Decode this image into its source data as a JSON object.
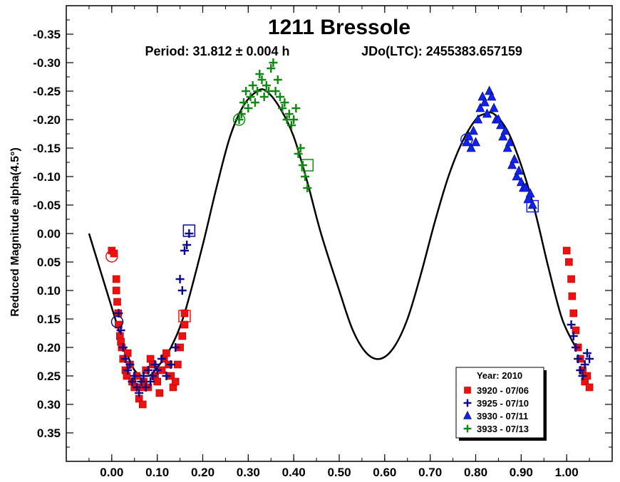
{
  "chart_data": {
    "type": "scatter",
    "title": "1211 Bressole",
    "subtitle_period": "Period: 31.812 ± 0.004 h",
    "subtitle_epoch": "JDo(LTC): 2455383.657159",
    "xlabel": "",
    "ylabel": "Reduced Magnitude alpha(4.5°)",
    "xlim": [
      -0.1,
      1.1
    ],
    "ylim": [
      -0.4,
      0.4
    ],
    "y_inverted": true,
    "x_ticks": [
      0.0,
      0.1,
      0.2,
      0.3,
      0.4,
      0.5,
      0.6,
      0.7,
      0.8,
      0.9,
      1.0
    ],
    "x_tick_labels": [
      "0.00",
      "0.10",
      "0.20",
      "0.30",
      "0.40",
      "0.50",
      "0.60",
      "0.70",
      "0.80",
      "0.90",
      "1.00"
    ],
    "y_ticks": [
      -0.35,
      -0.3,
      -0.25,
      -0.2,
      -0.15,
      -0.1,
      -0.05,
      0.0,
      0.05,
      0.1,
      0.15,
      0.2,
      0.25,
      0.3,
      0.35
    ],
    "y_tick_labels": [
      "-0.35",
      "-0.30",
      "-0.25",
      "-0.20",
      "-0.15",
      "-0.10",
      "-0.05",
      "0.00",
      "0.05",
      "0.10",
      "0.15",
      "0.20",
      "0.25",
      "0.30",
      "0.35"
    ],
    "grid": false,
    "legend": {
      "title": "Year: 2010",
      "placement": "bottom-right",
      "entries": [
        {
          "label": "3920 - 07/06",
          "marker": "square",
          "color": "#ee1111"
        },
        {
          "label": "3925 - 07/10",
          "marker": "plus",
          "color": "#0a0a8a"
        },
        {
          "label": "3930 - 07/11",
          "marker": "triangle",
          "color": "#1122ee"
        },
        {
          "label": "3933 - 07/13",
          "marker": "plus",
          "color": "#118811"
        }
      ]
    },
    "fit_curve": {
      "name": "Fourier fit",
      "color": "#000000",
      "x": [
        -0.05,
        0.0,
        0.02,
        0.05,
        0.08,
        0.1,
        0.13,
        0.16,
        0.2,
        0.23,
        0.26,
        0.29,
        0.32,
        0.34,
        0.37,
        0.4,
        0.43,
        0.46,
        0.5,
        0.53,
        0.56,
        0.59,
        0.62,
        0.65,
        0.68,
        0.71,
        0.74,
        0.77,
        0.8,
        0.82,
        0.84,
        0.87,
        0.9,
        0.93,
        0.96,
        0.99,
        1.02
      ],
      "y": [
        0.0,
        0.13,
        0.18,
        0.24,
        0.25,
        0.235,
        0.2,
        0.14,
        0.02,
        -0.08,
        -0.17,
        -0.225,
        -0.25,
        -0.25,
        -0.22,
        -0.17,
        -0.09,
        0.0,
        0.1,
        0.17,
        0.21,
        0.22,
        0.2,
        0.15,
        0.07,
        -0.02,
        -0.1,
        -0.16,
        -0.2,
        -0.21,
        -0.21,
        -0.18,
        -0.12,
        -0.04,
        0.06,
        0.15,
        0.2
      ]
    },
    "series": [
      {
        "name": "3920 - 07/06",
        "marker": "square",
        "color": "#ee1111",
        "x": [
          0.0,
          0.005,
          0.01,
          0.01,
          0.012,
          0.014,
          0.015,
          0.018,
          0.02,
          0.022,
          0.025,
          0.03,
          0.033,
          0.035,
          0.04,
          0.045,
          0.05,
          0.055,
          0.06,
          0.065,
          0.068,
          0.07,
          0.075,
          0.08,
          0.085,
          0.09,
          0.095,
          0.1,
          0.105,
          0.11,
          0.115,
          0.12,
          0.125,
          0.13,
          0.135,
          0.14,
          0.145,
          0.15,
          0.155,
          0.16,
          0.16,
          1.0,
          1.005,
          1.01,
          1.012,
          1.015,
          1.02,
          1.025,
          1.03,
          1.035,
          1.04,
          1.045,
          1.05
        ],
        "y": [
          0.03,
          0.035,
          0.08,
          0.1,
          0.12,
          0.14,
          0.16,
          0.18,
          0.19,
          0.2,
          0.22,
          0.24,
          0.25,
          0.21,
          0.23,
          0.26,
          0.27,
          0.25,
          0.29,
          0.27,
          0.3,
          0.26,
          0.24,
          0.27,
          0.22,
          0.23,
          0.25,
          0.26,
          0.28,
          0.24,
          0.22,
          0.21,
          0.23,
          0.25,
          0.27,
          0.26,
          0.23,
          0.2,
          0.18,
          0.16,
          0.14,
          0.03,
          0.05,
          0.08,
          0.11,
          0.14,
          0.17,
          0.2,
          0.22,
          0.24,
          0.26,
          0.25,
          0.27
        ]
      },
      {
        "name": "3925 - 07/10",
        "marker": "plus",
        "color": "#0a0a8a",
        "x": [
          0.015,
          0.02,
          0.025,
          0.03,
          0.035,
          0.04,
          0.045,
          0.05,
          0.055,
          0.06,
          0.065,
          0.07,
          0.075,
          0.08,
          0.085,
          0.09,
          0.095,
          0.1,
          0.11,
          0.12,
          0.13,
          0.14,
          0.15,
          0.155,
          0.16,
          0.165,
          0.17,
          1.01,
          1.015,
          1.02,
          1.025,
          1.03,
          1.035,
          1.04,
          1.045,
          1.05
        ],
        "y": [
          0.14,
          0.17,
          0.2,
          0.22,
          0.24,
          0.23,
          0.26,
          0.25,
          0.27,
          0.28,
          0.26,
          0.25,
          0.27,
          0.24,
          0.26,
          0.25,
          0.23,
          0.24,
          0.22,
          0.25,
          0.23,
          0.2,
          0.08,
          0.1,
          0.03,
          0.02,
          0.0,
          0.16,
          0.18,
          0.2,
          0.22,
          0.24,
          0.25,
          0.23,
          0.21,
          0.22
        ]
      },
      {
        "name": "3930 - 07/11",
        "marker": "triangle",
        "color": "#1122ee",
        "x": [
          0.78,
          0.785,
          0.79,
          0.795,
          0.8,
          0.805,
          0.81,
          0.815,
          0.82,
          0.825,
          0.83,
          0.835,
          0.84,
          0.845,
          0.85,
          0.855,
          0.86,
          0.865,
          0.87,
          0.875,
          0.88,
          0.885,
          0.89,
          0.895,
          0.9,
          0.905,
          0.91,
          0.915,
          0.92,
          0.925
        ],
        "y": [
          -0.16,
          -0.17,
          -0.15,
          -0.18,
          -0.16,
          -0.2,
          -0.22,
          -0.24,
          -0.23,
          -0.21,
          -0.25,
          -0.24,
          -0.22,
          -0.2,
          -0.2,
          -0.19,
          -0.17,
          -0.18,
          -0.15,
          -0.16,
          -0.12,
          -0.13,
          -0.1,
          -0.11,
          -0.09,
          -0.08,
          -0.08,
          -0.06,
          -0.07,
          -0.05
        ]
      },
      {
        "name": "3933 - 07/13",
        "marker": "plus",
        "color": "#118811",
        "x": [
          0.28,
          0.285,
          0.29,
          0.295,
          0.3,
          0.305,
          0.31,
          0.315,
          0.32,
          0.325,
          0.33,
          0.335,
          0.34,
          0.345,
          0.35,
          0.355,
          0.36,
          0.365,
          0.37,
          0.375,
          0.38,
          0.385,
          0.39,
          0.395,
          0.4,
          0.405,
          0.41,
          0.415,
          0.42,
          0.425,
          0.43
        ],
        "y": [
          -0.2,
          -0.21,
          -0.23,
          -0.25,
          -0.22,
          -0.24,
          -0.26,
          -0.23,
          -0.25,
          -0.28,
          -0.27,
          -0.24,
          -0.26,
          -0.25,
          -0.29,
          -0.3,
          -0.25,
          -0.27,
          -0.24,
          -0.22,
          -0.23,
          -0.2,
          -0.21,
          -0.19,
          -0.2,
          -0.22,
          -0.14,
          -0.15,
          -0.12,
          -0.1,
          -0.08
        ]
      }
    ],
    "open_markers": [
      {
        "x": 0.0,
        "y": 0.04,
        "marker": "circle",
        "color": "#ee1111"
      },
      {
        "x": 0.012,
        "y": 0.155,
        "marker": "circle",
        "color": "#0a0a8a"
      },
      {
        "x": 0.28,
        "y": -0.2,
        "marker": "circle",
        "color": "#118811"
      },
      {
        "x": 0.78,
        "y": -0.165,
        "marker": "circle",
        "color": "#1122ee"
      },
      {
        "x": 0.16,
        "y": 0.145,
        "marker": "box",
        "color": "#ee1111"
      },
      {
        "x": 0.17,
        "y": -0.005,
        "marker": "box",
        "color": "#0a0a8a"
      },
      {
        "x": 0.43,
        "y": -0.12,
        "marker": "box",
        "color": "#118811"
      },
      {
        "x": 0.925,
        "y": -0.048,
        "marker": "box",
        "color": "#1122ee"
      }
    ]
  }
}
